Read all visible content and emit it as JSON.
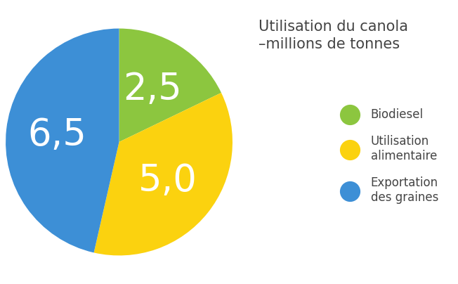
{
  "chart_data": {
    "type": "pie",
    "title": "Utilisation du canola\n–millions de tonnes",
    "categories": [
      "Biodiesel",
      "Utilisation\nalimentaire",
      "Exportation\ndes graines"
    ],
    "values": [
      2.5,
      5.0,
      6.5
    ],
    "value_labels": [
      "2,5",
      "5,0",
      "6,5"
    ],
    "colors": [
      "#8cc63f",
      "#fbd20f",
      "#3d8fd6"
    ],
    "data_labels": true,
    "legend": "center right"
  }
}
